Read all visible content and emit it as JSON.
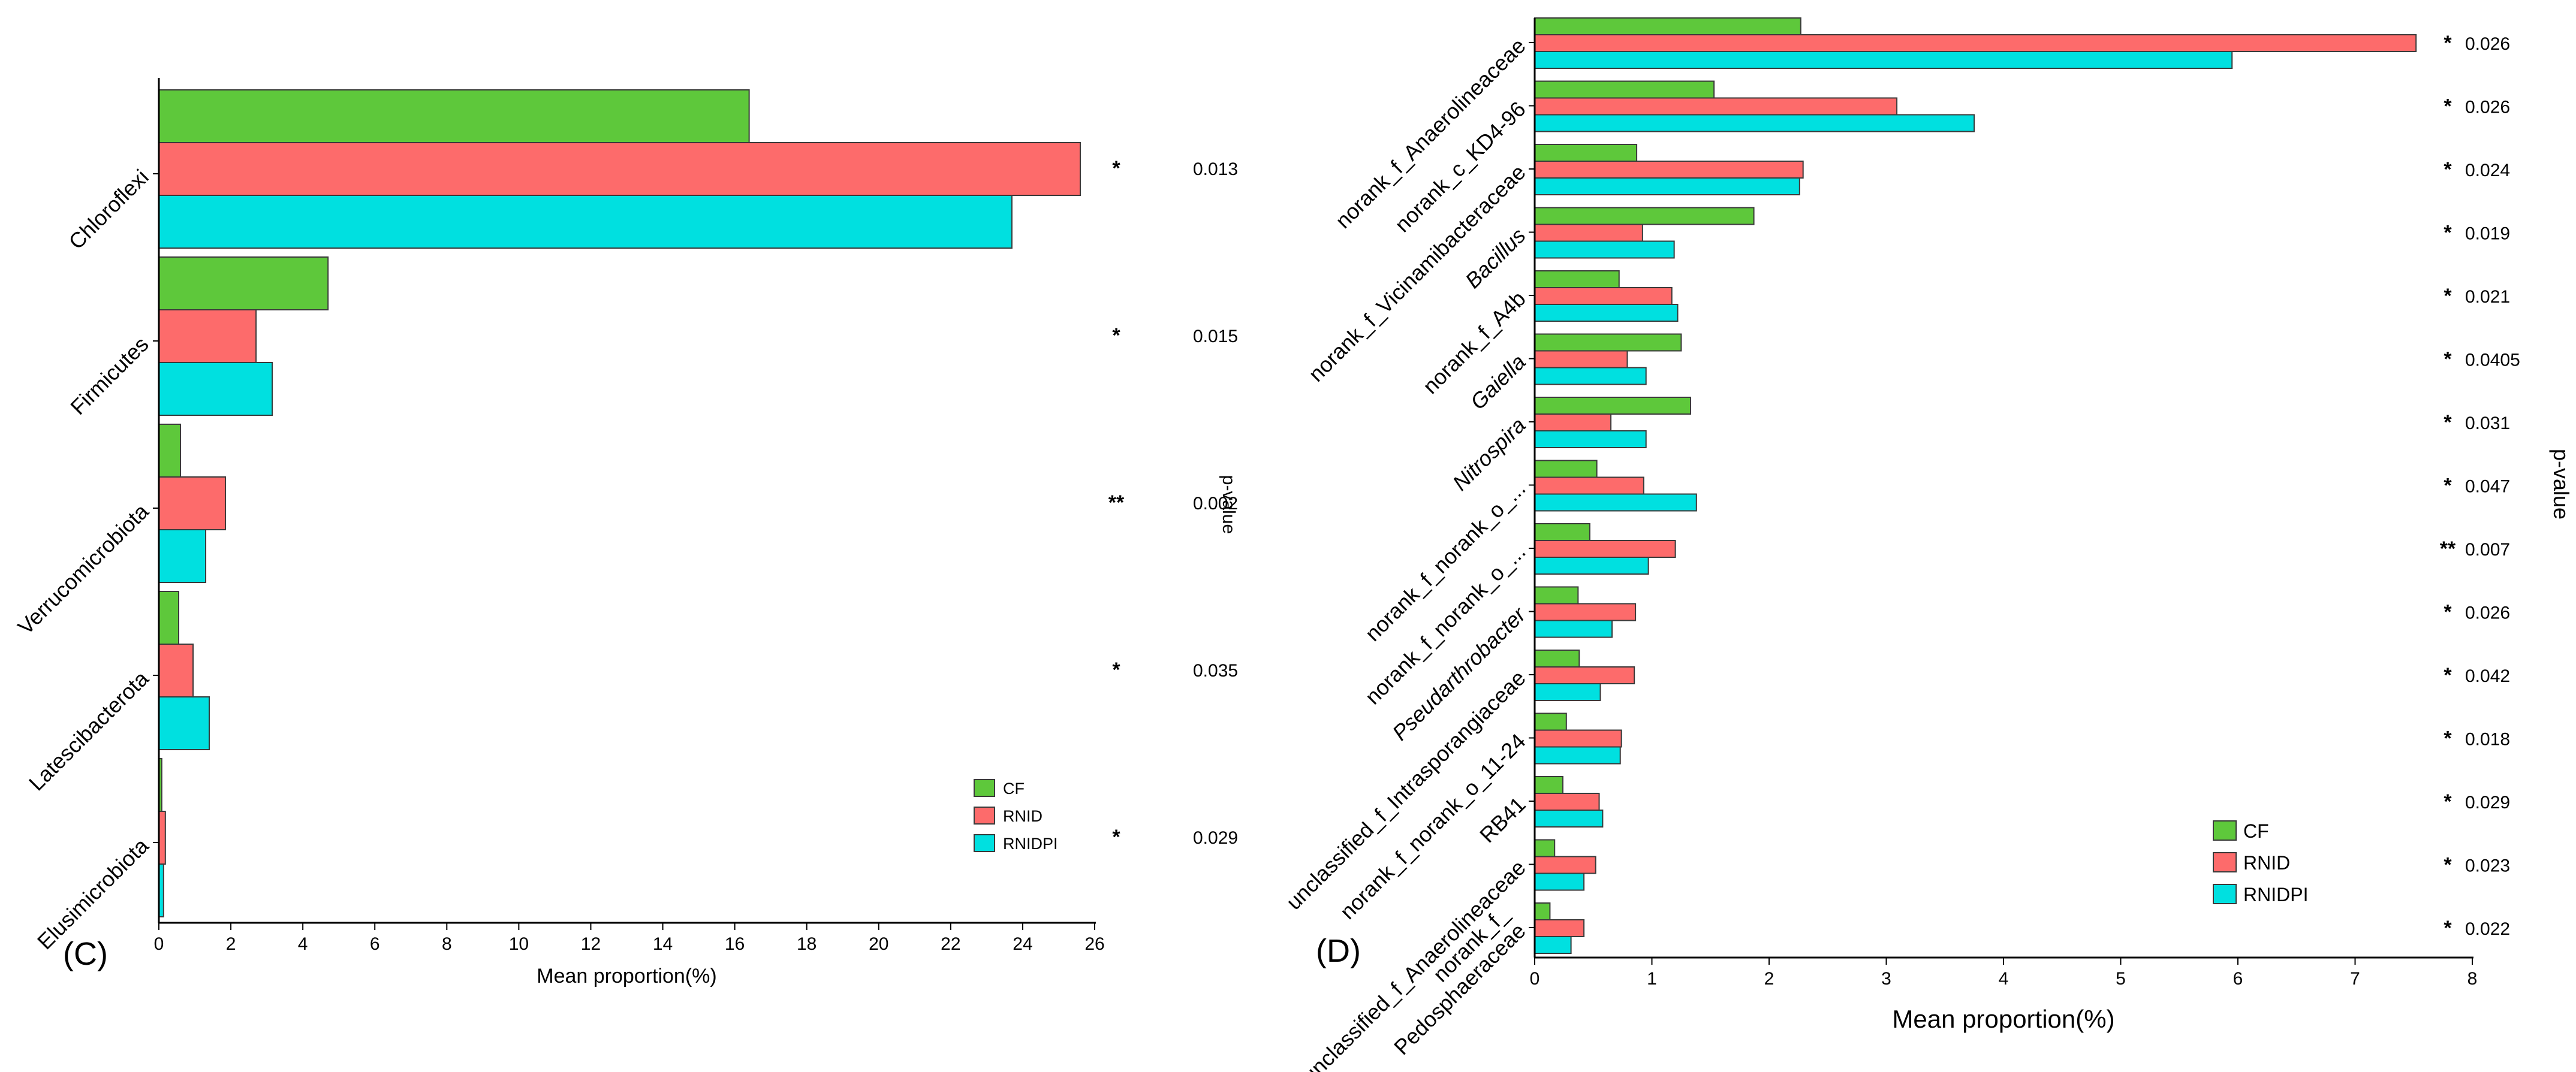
{
  "colors": {
    "CF": "#5ec83b",
    "RNID": "#fd6b6b",
    "RNIDPI": "#00e0e0",
    "star": "#e31a1c",
    "stroke": "#3a3a3a"
  },
  "chart_data": [
    {
      "type": "bar",
      "orientation": "horizontal",
      "panel_label": "(C)",
      "xlabel": "Mean proportion(%)",
      "ylabel": "",
      "side_label": "p-value",
      "xlim": [
        0,
        26
      ],
      "xticks": [
        "0",
        "2",
        "4",
        "6",
        "8",
        "10",
        "12",
        "14",
        "16",
        "18",
        "20",
        "22",
        "24",
        "26"
      ],
      "categories": [
        "Chloroflexi",
        "Firmicutes",
        "Verrucomicrobiota",
        "Latescibacterota",
        "Elusimicrobiota"
      ],
      "series": [
        {
          "name": "CF",
          "values": [
            16.4,
            4.7,
            0.6,
            0.55,
            0.08
          ]
        },
        {
          "name": "RNID",
          "values": [
            25.6,
            2.7,
            1.85,
            0.95,
            0.18
          ]
        },
        {
          "name": "RNIDPI",
          "values": [
            23.7,
            3.15,
            1.3,
            1.4,
            0.13
          ]
        }
      ],
      "stars": [
        "*",
        "*",
        "**",
        "*",
        "*"
      ],
      "pvalues": [
        "0.013",
        "0.015",
        "0.002",
        "0.035",
        "0.029"
      ],
      "legend": [
        "CF",
        "RNID",
        "RNIDPI"
      ],
      "legend_position": "bottom-right"
    },
    {
      "type": "bar",
      "orientation": "horizontal",
      "panel_label": "(D)",
      "xlabel": "Mean proportion(%)",
      "ylabel": "",
      "side_label": "p-value",
      "xlim": [
        0,
        8
      ],
      "xticks": [
        "0",
        "1",
        "2",
        "3",
        "4",
        "5",
        "6",
        "7",
        "8"
      ],
      "categories": [
        {
          "lines": [
            "norank_f_Anaerolineaceae"
          ],
          "italic": false
        },
        {
          "lines": [
            "norank_c_KD4-96"
          ],
          "italic": false
        },
        {
          "lines": [
            "norank_f_Vicinamibacteraceae"
          ],
          "italic": false
        },
        {
          "lines": [
            "Bacillus"
          ],
          "italic": true
        },
        {
          "lines": [
            "norank_f_A4b"
          ],
          "italic": false
        },
        {
          "lines": [
            "Gaiella"
          ],
          "italic": true
        },
        {
          "lines": [
            "Nitrospira"
          ],
          "italic": true
        },
        {
          "lines": [
            "norank_f_norank_o_..."
          ],
          "italic": false
        },
        {
          "lines": [
            "norank_f_norank_o_..."
          ],
          "italic": false
        },
        {
          "lines": [
            "Pseudarthrobacter"
          ],
          "italic": true
        },
        {
          "lines": [
            "unclassified_f_Intrasporangiaceae"
          ],
          "italic": false
        },
        {
          "lines": [
            "norank_f_norank_o_11-24"
          ],
          "italic": false
        },
        {
          "lines": [
            "RB41"
          ],
          "italic": false
        },
        {
          "lines": [
            "unclassified_f_Anaerolineaceae"
          ],
          "italic": false
        },
        {
          "lines": [
            "norank_f_",
            "Pedosphaeraceae"
          ],
          "italic": false
        }
      ],
      "series": [
        {
          "name": "CF",
          "values": [
            2.27,
            1.53,
            0.87,
            1.87,
            0.72,
            1.25,
            1.33,
            0.53,
            0.47,
            0.37,
            0.38,
            0.27,
            0.24,
            0.17,
            0.13
          ]
        },
        {
          "name": "RNID",
          "values": [
            7.52,
            3.09,
            2.29,
            0.92,
            1.17,
            0.79,
            0.65,
            0.93,
            1.2,
            0.86,
            0.85,
            0.74,
            0.55,
            0.52,
            0.42
          ]
        },
        {
          "name": "RNIDPI",
          "values": [
            5.95,
            3.75,
            2.26,
            1.19,
            1.22,
            0.95,
            0.95,
            1.38,
            0.97,
            0.66,
            0.56,
            0.73,
            0.58,
            0.42,
            0.31
          ]
        }
      ],
      "stars": [
        "*",
        "*",
        "*",
        "*",
        "*",
        "*",
        "*",
        "*",
        "**",
        "*",
        "*",
        "*",
        "*",
        "*",
        "*"
      ],
      "pvalues": [
        "0.026",
        "0.026",
        "0.024",
        "0.019",
        "0.021",
        "0.0405",
        "0.031",
        "0.047",
        "0.007",
        "0.026",
        "0.042",
        "0.018",
        "0.029",
        "0.023",
        "0.022"
      ],
      "legend": [
        "CF",
        "RNID",
        "RNIDPI"
      ],
      "legend_position": "bottom-right"
    }
  ]
}
